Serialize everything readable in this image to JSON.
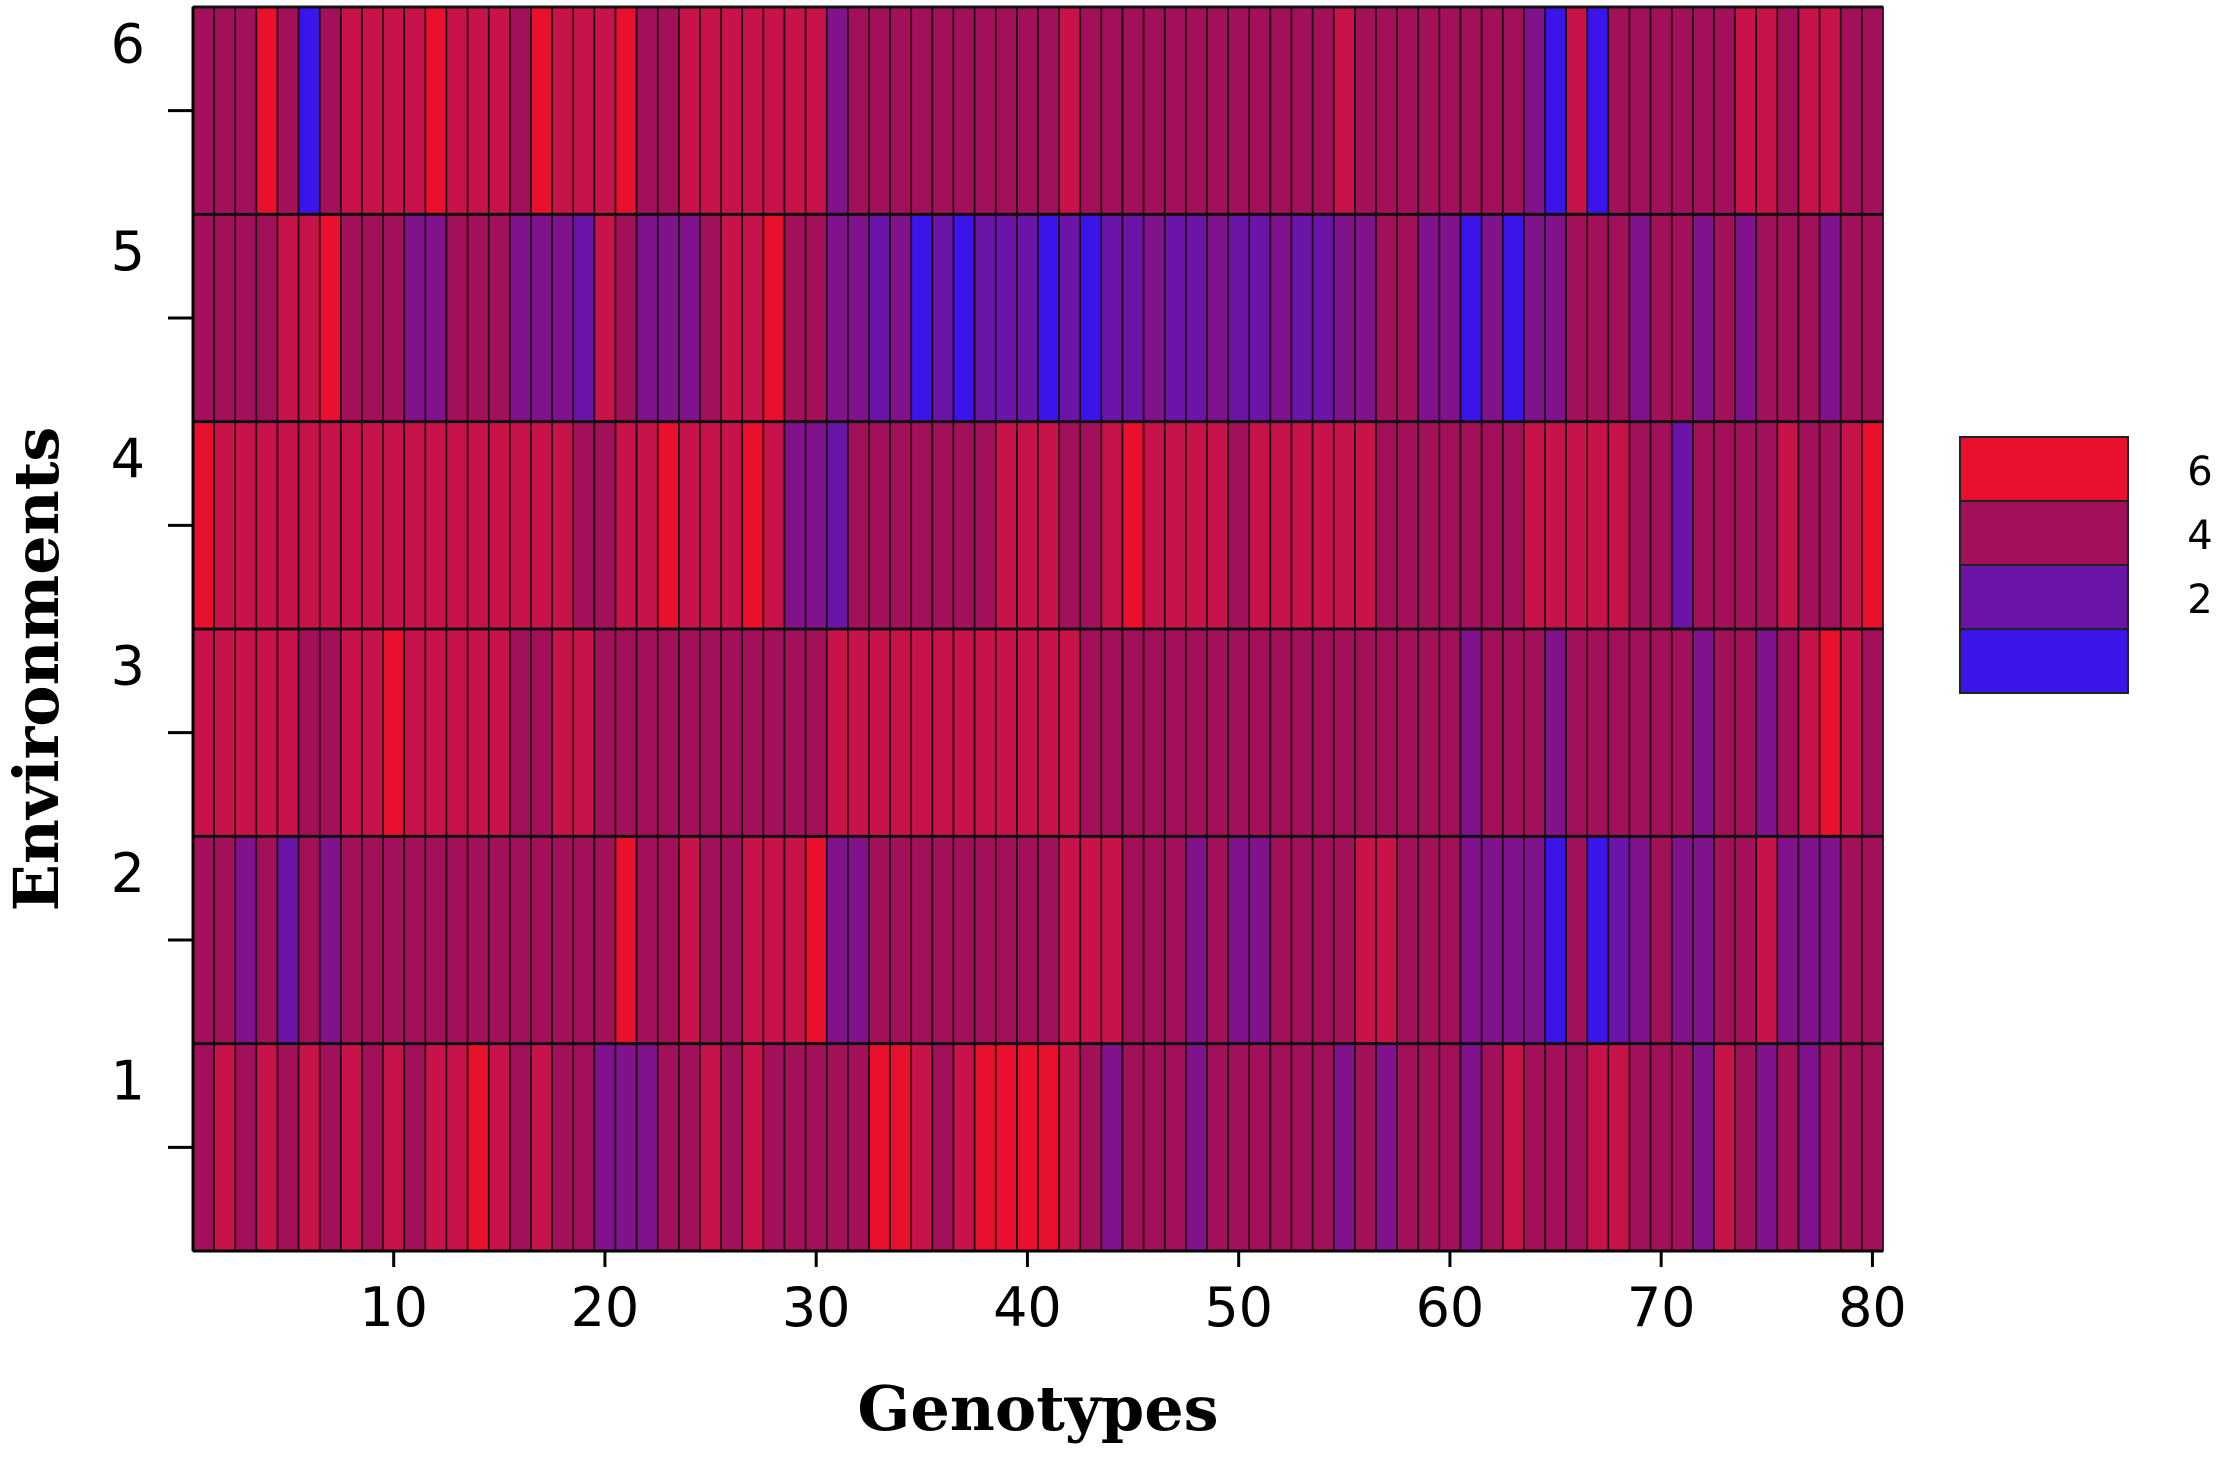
{
  "chart_data": {
    "type": "heatmap",
    "title": "",
    "xlabel": "Genotypes",
    "ylabel": "Environments",
    "x_ticks": [
      10,
      20,
      30,
      40,
      50,
      60,
      70,
      80
    ],
    "y_ticks": [
      1,
      2,
      3,
      4,
      5,
      6
    ],
    "xlim": [
      0.5,
      80.5
    ],
    "ylim": [
      0.5,
      6.5
    ],
    "grid": false,
    "legend": {
      "placement": "right",
      "labels": [
        "6",
        "4",
        "2"
      ],
      "bins": [
        {
          "label": "6",
          "color": "#e8102d"
        },
        {
          "label": "4",
          "color": "#a3105a"
        },
        {
          "label": "2",
          "color": "#6a14a8"
        },
        {
          "label": "",
          "color": "#3a14e8"
        }
      ]
    },
    "levels": {
      "6": "#e8102d",
      "5": "#c8124a",
      "4": "#a3105a",
      "3": "#80128c",
      "2": "#6a14a8",
      "1": "#3a14e8"
    },
    "rows": [
      {
        "environment": 1,
        "values": [
          4,
          5,
          4,
          5,
          4,
          5,
          4,
          5,
          4,
          5,
          4,
          5,
          5,
          6,
          5,
          4,
          5,
          4,
          4,
          3,
          3,
          3,
          4,
          4,
          5,
          4,
          5,
          4,
          4,
          4,
          4,
          4,
          6,
          6,
          5,
          4,
          5,
          6,
          6,
          6,
          6,
          5,
          4,
          3,
          4,
          4,
          4,
          3,
          4,
          4,
          4,
          4,
          4,
          4,
          3,
          4,
          3,
          4,
          4,
          4,
          3,
          4,
          5,
          4,
          4,
          4,
          5,
          5,
          4,
          4,
          4,
          3,
          5,
          4,
          3,
          4,
          3,
          4,
          4,
          4
        ]
      },
      {
        "environment": 2,
        "values": [
          4,
          4,
          3,
          4,
          2,
          4,
          3,
          4,
          4,
          4,
          4,
          4,
          4,
          4,
          4,
          4,
          4,
          4,
          4,
          4,
          6,
          4,
          4,
          5,
          4,
          4,
          5,
          5,
          5,
          6,
          3,
          3,
          4,
          4,
          4,
          4,
          4,
          4,
          4,
          4,
          4,
          5,
          5,
          5,
          4,
          4,
          4,
          3,
          4,
          3,
          3,
          4,
          4,
          4,
          4,
          5,
          5,
          4,
          4,
          4,
          3,
          3,
          3,
          3,
          1,
          4,
          1,
          2,
          3,
          4,
          3,
          3,
          4,
          4,
          5,
          3,
          3,
          3,
          4,
          4
        ]
      },
      {
        "environment": 3,
        "values": [
          5,
          5,
          5,
          5,
          5,
          4,
          4,
          5,
          5,
          6,
          5,
          5,
          5,
          5,
          5,
          4,
          4,
          5,
          5,
          4,
          4,
          4,
          4,
          4,
          4,
          4,
          4,
          4,
          4,
          4,
          5,
          5,
          5,
          5,
          5,
          5,
          5,
          5,
          5,
          5,
          5,
          5,
          4,
          4,
          4,
          4,
          4,
          4,
          4,
          4,
          4,
          4,
          4,
          4,
          4,
          4,
          4,
          4,
          4,
          4,
          3,
          4,
          4,
          4,
          3,
          4,
          4,
          4,
          4,
          4,
          4,
          3,
          4,
          4,
          3,
          4,
          5,
          6,
          5,
          4
        ]
      },
      {
        "environment": 4,
        "values": [
          6,
          5,
          5,
          5,
          5,
          5,
          5,
          5,
          5,
          5,
          5,
          5,
          5,
          5,
          5,
          5,
          5,
          5,
          4,
          4,
          5,
          5,
          6,
          5,
          5,
          5,
          6,
          5,
          3,
          3,
          2,
          4,
          4,
          4,
          4,
          4,
          4,
          4,
          5,
          5,
          5,
          4,
          4,
          5,
          6,
          5,
          5,
          5,
          5,
          4,
          5,
          5,
          5,
          5,
          5,
          5,
          4,
          4,
          4,
          4,
          4,
          4,
          4,
          5,
          5,
          5,
          5,
          5,
          4,
          4,
          2,
          4,
          4,
          4,
          4,
          5,
          4,
          4,
          5,
          6
        ]
      },
      {
        "environment": 5,
        "values": [
          4,
          4,
          4,
          4,
          5,
          5,
          6,
          4,
          4,
          4,
          3,
          3,
          4,
          4,
          4,
          3,
          3,
          3,
          2,
          5,
          4,
          3,
          3,
          3,
          4,
          5,
          5,
          6,
          4,
          4,
          3,
          3,
          2,
          3,
          1,
          2,
          1,
          2,
          2,
          2,
          1,
          2,
          1,
          2,
          2,
          3,
          2,
          2,
          3,
          2,
          2,
          3,
          2,
          2,
          3,
          3,
          4,
          4,
          3,
          3,
          1,
          3,
          1,
          3,
          3,
          4,
          4,
          4,
          3,
          4,
          4,
          3,
          4,
          3,
          4,
          4,
          4,
          3,
          4,
          4
        ]
      },
      {
        "environment": 6,
        "values": [
          4,
          4,
          4,
          6,
          4,
          1,
          4,
          5,
          5,
          5,
          5,
          6,
          5,
          5,
          5,
          4,
          6,
          5,
          5,
          5,
          6,
          4,
          4,
          5,
          5,
          5,
          5,
          5,
          5,
          5,
          3,
          4,
          4,
          4,
          4,
          4,
          4,
          4,
          4,
          4,
          4,
          5,
          4,
          4,
          4,
          4,
          4,
          4,
          4,
          4,
          4,
          4,
          4,
          4,
          5,
          4,
          4,
          4,
          4,
          4,
          4,
          4,
          4,
          3,
          1,
          5,
          1,
          4,
          4,
          4,
          4,
          4,
          4,
          5,
          5,
          4,
          5,
          5,
          4,
          4
        ]
      }
    ]
  }
}
